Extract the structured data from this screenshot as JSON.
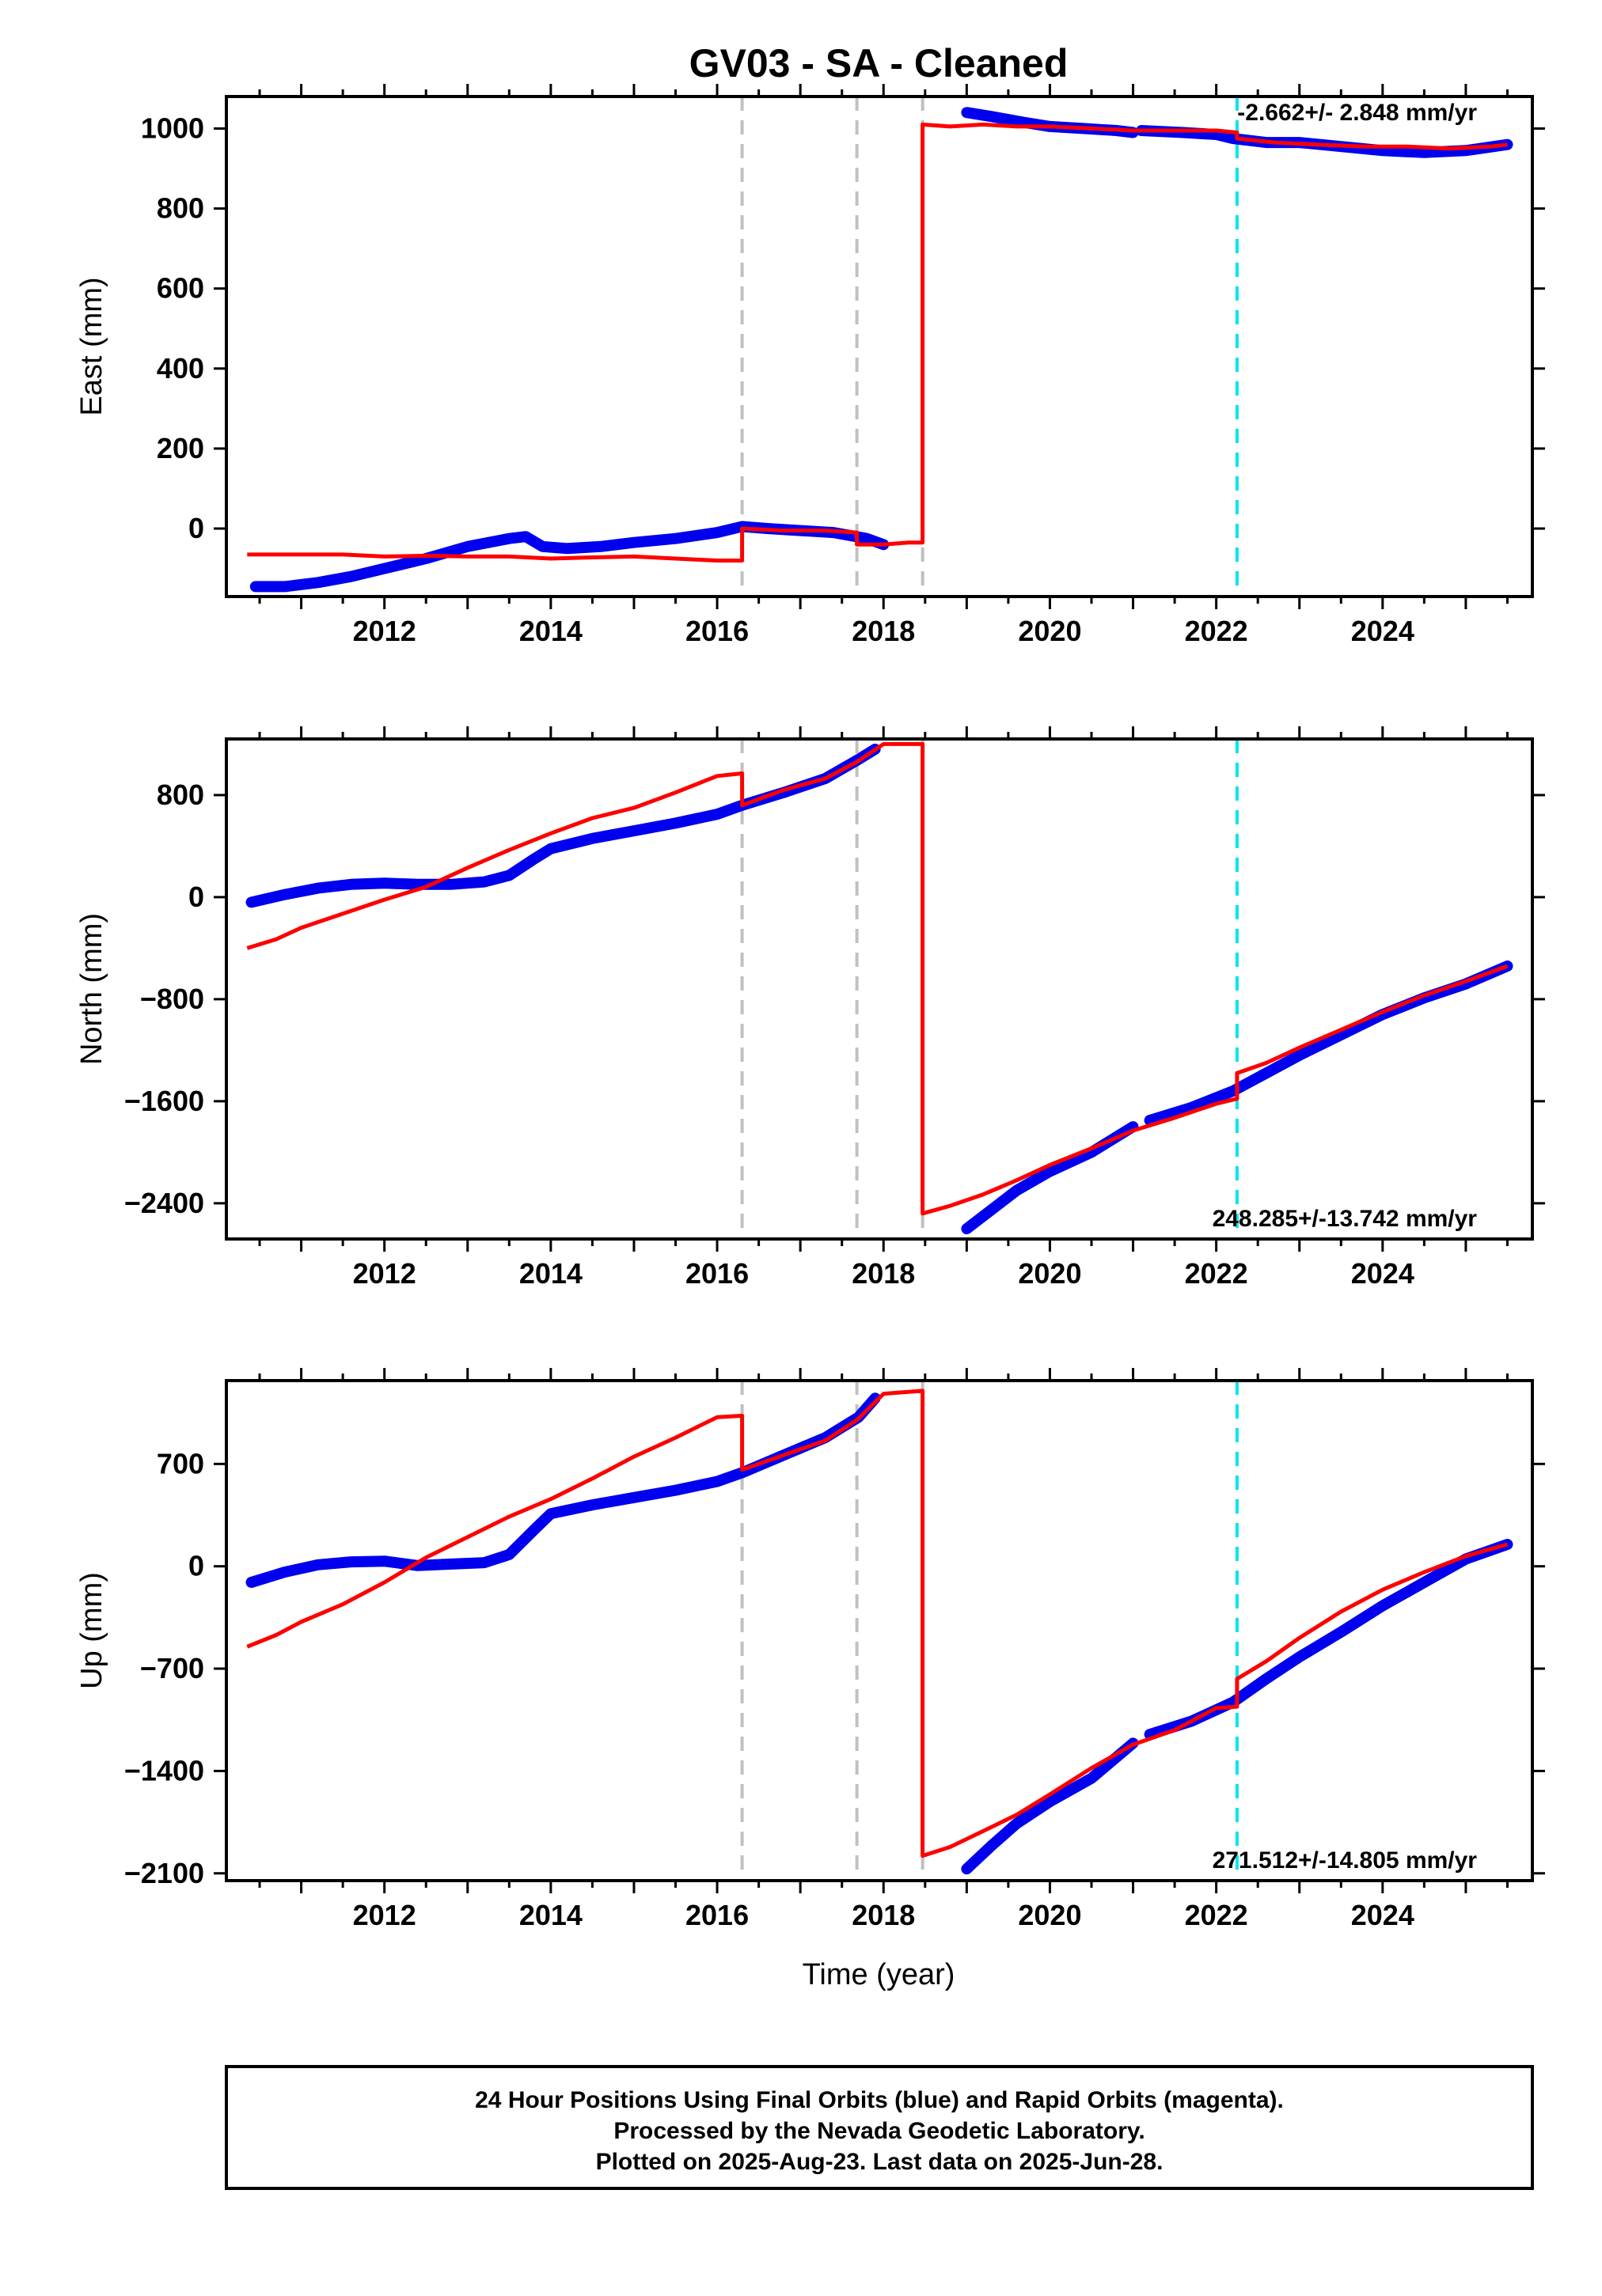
{
  "title": "GV03  - SA - Cleaned",
  "x_axis_title": "Time (year)",
  "caption": [
    "24 Hour Positions Using Final Orbits (blue) and Rapid Orbits (magenta).",
    "Processed by the Nevada Geodetic Laboratory.",
    "Plotted on 2025-Aug-23. Last data on 2025-Jun-28."
  ],
  "colors": {
    "final": "#0000ee",
    "rapid": "#ff0000",
    "gray_line": "#c0c0c0",
    "cyan_line": "#00e5ee"
  },
  "chart_data": [
    {
      "type": "line",
      "ylabel": "East (mm)",
      "rate": "-2.662+/- 2.848 mm/yr",
      "xlim": [
        2010.1,
        2025.8
      ],
      "ylim": [
        -170,
        1080
      ],
      "xticks": [
        2012,
        2014,
        2016,
        2018,
        2020,
        2022,
        2024
      ],
      "yticks": [
        0,
        200,
        400,
        600,
        800,
        1000
      ],
      "ytick_labels": [
        "0",
        "200",
        "400",
        "600",
        "800",
        "1000"
      ],
      "vlines_gray": [
        2016.3,
        2017.68,
        2018.47
      ],
      "vlines_cyan": [
        2022.25
      ],
      "final": {
        "x": [
          2010.45,
          2010.8,
          2011.2,
          2011.6,
          2012.0,
          2012.5,
          2013.0,
          2013.5,
          2013.7,
          2013.9,
          2014.2,
          2014.6,
          2015.0,
          2015.5,
          2016.0,
          2016.3,
          2016.6,
          2017.0,
          2017.4,
          2017.8,
          2018.0,
          null,
          2019.0,
          2019.3,
          2019.7,
          2020.0,
          2020.4,
          2020.8,
          2021.0,
          null,
          2021.1,
          2021.6,
          2022.0,
          2022.2,
          2022.6,
          2023.0,
          2023.5,
          2024.0,
          2024.5,
          2025.0,
          2025.5
        ],
        "y": [
          -145,
          -145,
          -135,
          -120,
          -100,
          -75,
          -45,
          -25,
          -20,
          -45,
          -50,
          -45,
          -35,
          -25,
          -10,
          5,
          0,
          -5,
          -10,
          -25,
          -40,
          null,
          1040,
          1030,
          1015,
          1005,
          1000,
          995,
          990,
          null,
          995,
          990,
          985,
          975,
          965,
          965,
          955,
          945,
          940,
          945,
          960
        ]
      },
      "rapid": {
        "x": [
          2010.35,
          2010.6,
          2011.0,
          2011.5,
          2012.0,
          2012.5,
          2013.0,
          2013.5,
          2014.0,
          2014.5,
          2015.0,
          2015.5,
          2016.0,
          2016.3,
          2016.3,
          2016.8,
          2017.3,
          2017.68,
          2017.68,
          2018.0,
          2018.3,
          2018.47,
          2018.47,
          2018.8,
          2019.2,
          2019.6,
          2020.0,
          2020.5,
          2021.0,
          2021.5,
          2022.0,
          2022.25,
          2022.25,
          2022.7,
          2023.2,
          2023.8,
          2024.3,
          2024.8,
          2025.3,
          2025.5
        ],
        "y": [
          -65,
          -65,
          -65,
          -65,
          -70,
          -68,
          -70,
          -70,
          -75,
          -72,
          -70,
          -75,
          -80,
          -80,
          0,
          -5,
          -5,
          -10,
          -40,
          -40,
          -35,
          -35,
          1010,
          1005,
          1010,
          1005,
          1005,
          1000,
          995,
          995,
          995,
          990,
          975,
          965,
          960,
          955,
          955,
          950,
          955,
          960
        ]
      }
    },
    {
      "type": "line",
      "ylabel": "North (mm)",
      "rate": "248.285+/-13.742 mm/yr",
      "xlim": [
        2010.1,
        2025.8
      ],
      "ylim": [
        -2680,
        1240
      ],
      "xticks": [
        2012,
        2014,
        2016,
        2018,
        2020,
        2022,
        2024
      ],
      "yticks": [
        800,
        0,
        -800,
        -1600,
        -2400
      ],
      "ytick_labels": [
        "800",
        "0",
        "−800",
        "−1600",
        "−2400"
      ],
      "vlines_gray": [
        2016.3,
        2017.68,
        2018.47
      ],
      "vlines_cyan": [
        2022.25
      ],
      "final": {
        "x": [
          2010.4,
          2010.8,
          2011.2,
          2011.6,
          2012.0,
          2012.4,
          2012.8,
          2013.2,
          2013.5,
          2013.8,
          2014.0,
          2014.5,
          2015.0,
          2015.5,
          2016.0,
          2016.3,
          2016.8,
          2017.3,
          2017.7,
          2017.9,
          null,
          2019.0,
          2019.3,
          2019.6,
          2020.0,
          2020.5,
          2021.0,
          null,
          2021.2,
          2021.7,
          2022.2,
          2022.6,
          2023.0,
          2023.5,
          2024.0,
          2024.5,
          2025.0,
          2025.5
        ],
        "y": [
          -40,
          20,
          70,
          100,
          110,
          100,
          100,
          120,
          170,
          300,
          380,
          460,
          520,
          580,
          650,
          720,
          820,
          930,
          1080,
          1160,
          null,
          -2600,
          -2450,
          -2300,
          -2150,
          -2000,
          -1800,
          null,
          -1750,
          -1650,
          -1520,
          -1380,
          -1240,
          -1080,
          -920,
          -790,
          -680,
          -540
        ]
      },
      "rapid": {
        "x": [
          2010.35,
          2010.7,
          2011.0,
          2011.5,
          2012.0,
          2012.5,
          2013.0,
          2013.5,
          2014.0,
          2014.5,
          2015.0,
          2015.5,
          2016.0,
          2016.3,
          2016.3,
          2016.8,
          2017.3,
          2017.68,
          2018.0,
          2018.47,
          2018.47,
          2018.8,
          2019.2,
          2019.6,
          2020.0,
          2020.5,
          2021.0,
          2021.5,
          2022.0,
          2022.25,
          2022.25,
          2022.6,
          2023.0,
          2023.5,
          2024.0,
          2024.5,
          2025.0,
          2025.5
        ],
        "y": [
          -400,
          -330,
          -240,
          -130,
          -20,
          80,
          230,
          370,
          500,
          620,
          700,
          820,
          950,
          970,
          720,
          840,
          930,
          1060,
          1200,
          1200,
          -2480,
          -2420,
          -2330,
          -2220,
          -2100,
          -1970,
          -1830,
          -1730,
          -1620,
          -1580,
          -1380,
          -1300,
          -1180,
          -1040,
          -900,
          -770,
          -660,
          -540
        ]
      }
    },
    {
      "type": "line",
      "ylabel": "Up (mm)",
      "rate": "271.512+/-14.805 mm/yr",
      "xlim": [
        2010.1,
        2025.8
      ],
      "ylim": [
        -2150,
        1270
      ],
      "xticks": [
        2012,
        2014,
        2016,
        2018,
        2020,
        2022,
        2024
      ],
      "yticks": [
        700,
        0,
        -700,
        -1400,
        -2100
      ],
      "ytick_labels": [
        "700",
        "0",
        "−700",
        "−1400",
        "−2100"
      ],
      "vlines_gray": [
        2016.3,
        2017.68,
        2018.47
      ],
      "vlines_cyan": [
        2022.25
      ],
      "final": {
        "x": [
          2010.4,
          2010.8,
          2011.2,
          2011.6,
          2012.0,
          2012.4,
          2012.8,
          2013.2,
          2013.5,
          2013.8,
          2014.0,
          2014.5,
          2015.0,
          2015.5,
          2016.0,
          2016.3,
          2016.8,
          2017.3,
          2017.7,
          2017.9,
          null,
          2019.0,
          2019.3,
          2019.6,
          2020.0,
          2020.5,
          2021.0,
          null,
          2021.2,
          2021.7,
          2022.2,
          2022.6,
          2023.0,
          2023.5,
          2024.0,
          2024.5,
          2025.0,
          2025.5
        ],
        "y": [
          -110,
          -40,
          10,
          30,
          35,
          5,
          15,
          25,
          80,
          250,
          360,
          420,
          470,
          520,
          580,
          640,
          760,
          880,
          1020,
          1150,
          null,
          -2070,
          -1910,
          -1760,
          -1610,
          -1450,
          -1210,
          null,
          -1150,
          -1060,
          -930,
          -770,
          -620,
          -450,
          -270,
          -110,
          50,
          150
        ]
      },
      "rapid": {
        "x": [
          2010.35,
          2010.7,
          2011.0,
          2011.5,
          2012.0,
          2012.5,
          2013.0,
          2013.5,
          2014.0,
          2014.5,
          2015.0,
          2015.5,
          2016.0,
          2016.3,
          2016.3,
          2016.8,
          2017.3,
          2017.68,
          2018.0,
          2018.47,
          2018.47,
          2018.8,
          2019.2,
          2019.6,
          2020.0,
          2020.5,
          2021.0,
          2021.5,
          2022.0,
          2022.25,
          2022.25,
          2022.6,
          2023.0,
          2023.5,
          2024.0,
          2024.5,
          2025.0,
          2025.5
        ],
        "y": [
          -550,
          -470,
          -380,
          -260,
          -110,
          60,
          200,
          340,
          460,
          600,
          750,
          880,
          1020,
          1030,
          660,
          760,
          860,
          1000,
          1180,
          1200,
          -1980,
          -1920,
          -1810,
          -1700,
          -1560,
          -1380,
          -1220,
          -1120,
          -970,
          -960,
          -770,
          -650,
          -490,
          -310,
          -160,
          -40,
          70,
          150
        ]
      }
    }
  ]
}
